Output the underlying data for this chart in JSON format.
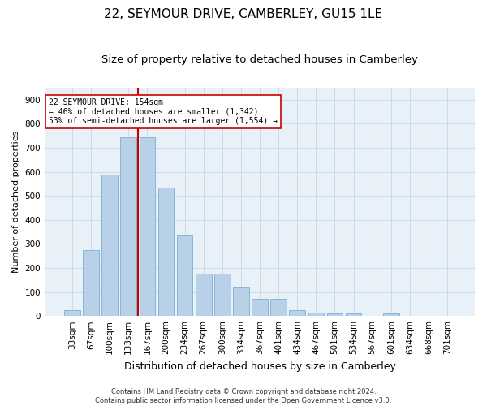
{
  "title": "22, SEYMOUR DRIVE, CAMBERLEY, GU15 1LE",
  "subtitle": "Size of property relative to detached houses in Camberley",
  "xlabel": "Distribution of detached houses by size in Camberley",
  "ylabel": "Number of detached properties",
  "footer_line1": "Contains HM Land Registry data © Crown copyright and database right 2024.",
  "footer_line2": "Contains public sector information licensed under the Open Government Licence v3.0.",
  "bar_labels": [
    "33sqm",
    "67sqm",
    "100sqm",
    "133sqm",
    "167sqm",
    "200sqm",
    "234sqm",
    "267sqm",
    "300sqm",
    "334sqm",
    "367sqm",
    "401sqm",
    "434sqm",
    "467sqm",
    "501sqm",
    "534sqm",
    "567sqm",
    "601sqm",
    "634sqm",
    "668sqm",
    "701sqm"
  ],
  "bar_values": [
    25,
    275,
    590,
    745,
    745,
    535,
    335,
    175,
    175,
    120,
    70,
    70,
    25,
    15,
    10,
    10,
    0,
    10,
    0,
    0,
    0
  ],
  "bar_color": "#b8d0e8",
  "bar_edgecolor": "#7aafd4",
  "vline_color": "#cc0000",
  "annotation_text": "22 SEYMOUR DRIVE: 154sqm\n← 46% of detached houses are smaller (1,342)\n53% of semi-detached houses are larger (1,554) →",
  "annotation_box_color": "#ffffff",
  "annotation_box_edgecolor": "#cc0000",
  "ylim": [
    0,
    950
  ],
  "yticks": [
    0,
    100,
    200,
    300,
    400,
    500,
    600,
    700,
    800,
    900
  ],
  "grid_color": "#ccd9e8",
  "bg_color": "#e8f0f8",
  "title_fontsize": 11,
  "subtitle_fontsize": 9.5,
  "xlabel_fontsize": 9,
  "ylabel_fontsize": 8,
  "tick_fontsize": 7.5,
  "annotation_fontsize": 7,
  "footer_fontsize": 6
}
